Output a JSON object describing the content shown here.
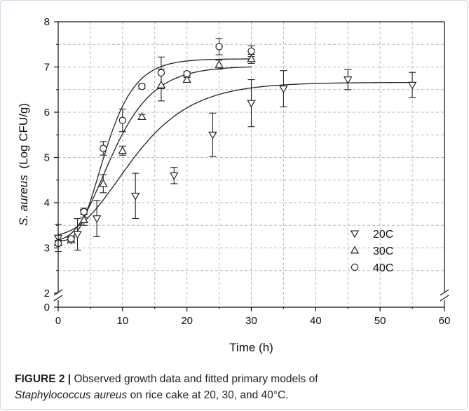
{
  "chart_data": {
    "type": "scatter",
    "xlabel": "Time (h)",
    "ylabel_species": "S. aureus",
    "ylabel_unit": "(Log CFU/g)",
    "xlim": [
      0,
      60
    ],
    "ylim": [
      2,
      8
    ],
    "y_break": true,
    "y_break_lower_tick": 0,
    "x_ticks": [
      0,
      10,
      20,
      30,
      40,
      50,
      60
    ],
    "y_ticks": [
      2,
      3,
      4,
      5,
      6,
      7,
      8
    ],
    "grid": true,
    "legend_position": "bottom-right",
    "series": [
      {
        "name": "20C",
        "marker": "triangle-down",
        "points": [
          {
            "x": 0,
            "y": 3.22,
            "err": 0.3
          },
          {
            "x": 2,
            "y": 3.18,
            "err": 0.05
          },
          {
            "x": 3,
            "y": 3.3,
            "err": 0.35
          },
          {
            "x": 4,
            "y": 3.78,
            "err": 0.1
          },
          {
            "x": 6,
            "y": 3.65,
            "err": 0.4
          },
          {
            "x": 12,
            "y": 4.15,
            "err": 0.5
          },
          {
            "x": 18,
            "y": 4.6,
            "err": 0.18
          },
          {
            "x": 24,
            "y": 5.5,
            "err": 0.48
          },
          {
            "x": 30,
            "y": 6.2,
            "err": 0.52
          },
          {
            "x": 35,
            "y": 6.52,
            "err": 0.4
          },
          {
            "x": 45,
            "y": 6.72,
            "err": 0.22
          },
          {
            "x": 55,
            "y": 6.6,
            "err": 0.28
          }
        ],
        "fit": {
          "y0": 3.25,
          "ymax": 6.66,
          "mu": 0.2,
          "lag": 3.0
        }
      },
      {
        "name": "30C",
        "marker": "triangle-up",
        "points": [
          {
            "x": 0,
            "y": 3.12,
            "err": 0.05
          },
          {
            "x": 2,
            "y": 3.17,
            "err": 0.05
          },
          {
            "x": 4,
            "y": 3.62,
            "err": 0.12
          },
          {
            "x": 7,
            "y": 4.42,
            "err": 0.2
          },
          {
            "x": 10,
            "y": 5.15,
            "err": 0.1
          },
          {
            "x": 13,
            "y": 5.9,
            "err": 0.05
          },
          {
            "x": 16,
            "y": 6.6,
            "err": 0.35
          },
          {
            "x": 20,
            "y": 6.72,
            "err": 0.05
          },
          {
            "x": 25,
            "y": 7.05,
            "err": 0.1
          },
          {
            "x": 30,
            "y": 7.18,
            "err": 0.1
          }
        ],
        "fit": {
          "y0": 3.15,
          "ymax": 7.02,
          "mu": 0.33,
          "lag": 2.6
        }
      },
      {
        "name": "40C",
        "marker": "circle",
        "points": [
          {
            "x": 0,
            "y": 3.1,
            "err": 0.05
          },
          {
            "x": 2,
            "y": 3.2,
            "err": 0.05
          },
          {
            "x": 4,
            "y": 3.8,
            "err": 0.05
          },
          {
            "x": 7,
            "y": 5.2,
            "err": 0.15
          },
          {
            "x": 10,
            "y": 5.82,
            "err": 0.25
          },
          {
            "x": 13,
            "y": 6.57,
            "err": 0.05
          },
          {
            "x": 16,
            "y": 6.87,
            "err": 0.35
          },
          {
            "x": 20,
            "y": 6.85,
            "err": 0.05
          },
          {
            "x": 25,
            "y": 7.45,
            "err": 0.18
          },
          {
            "x": 30,
            "y": 7.35,
            "err": 0.12
          }
        ],
        "fit": {
          "y0": 3.15,
          "ymax": 7.18,
          "mu": 0.48,
          "lag": 3.2
        }
      }
    ]
  },
  "caption": {
    "label": "FIGURE 2 |",
    "text_1": " Observed growth data and fitted primary models of",
    "species": "Staphylococcus aureus",
    "text_2": " on rice cake at 20, 30, and 40°C."
  }
}
